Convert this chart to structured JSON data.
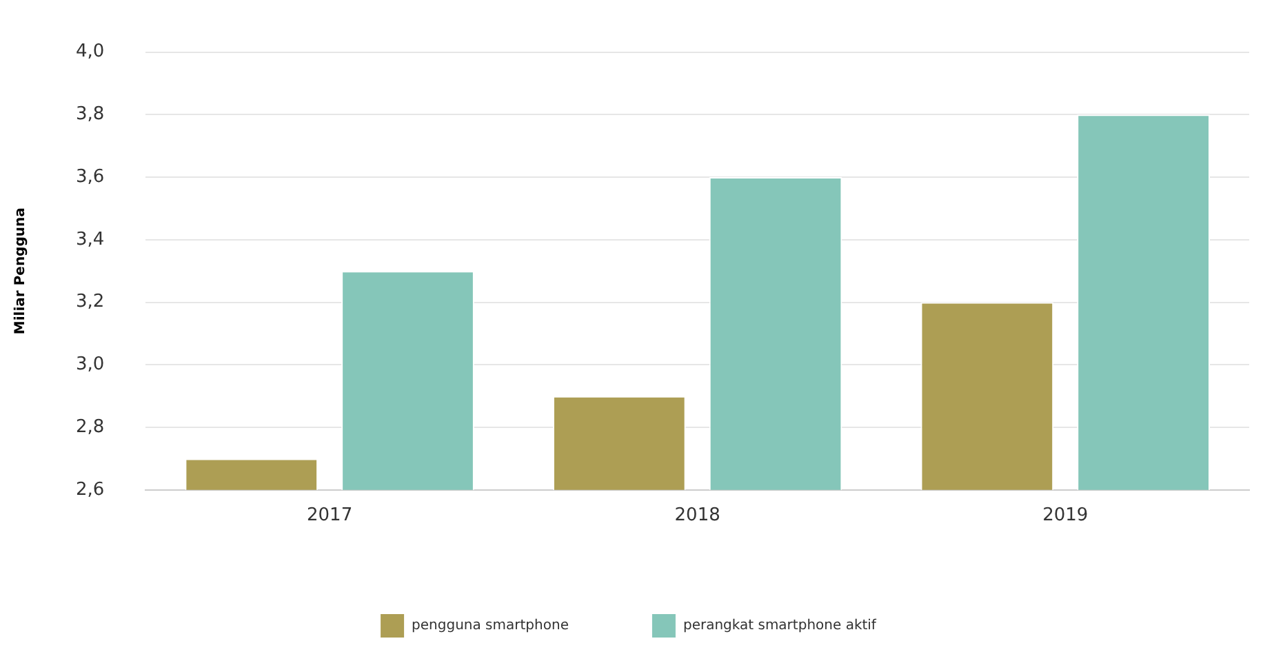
{
  "chart_data": {
    "type": "bar",
    "ylabel": "Miliar Pengguna",
    "categories": [
      "2017",
      "2018",
      "2019"
    ],
    "series": [
      {
        "name": "pengguna smartphone",
        "color": "#ad9e54",
        "values": [
          2.7,
          2.9,
          3.2
        ]
      },
      {
        "name": "perangkat smartphone aktif",
        "color": "#85c6b9",
        "values": [
          3.3,
          3.6,
          3.8
        ]
      }
    ],
    "ylim": [
      2.6,
      4.0
    ],
    "yticks": [
      {
        "value": 2.6,
        "label": "2,6"
      },
      {
        "value": 2.8,
        "label": "2,8"
      },
      {
        "value": 3.0,
        "label": "3,0"
      },
      {
        "value": 3.2,
        "label": "3,2"
      },
      {
        "value": 3.4,
        "label": "3,4"
      },
      {
        "value": 3.6,
        "label": "3,6"
      },
      {
        "value": 3.8,
        "label": "3,8"
      },
      {
        "value": 4.0,
        "label": "4,0"
      }
    ],
    "grid": "y",
    "legend": "bottom"
  }
}
